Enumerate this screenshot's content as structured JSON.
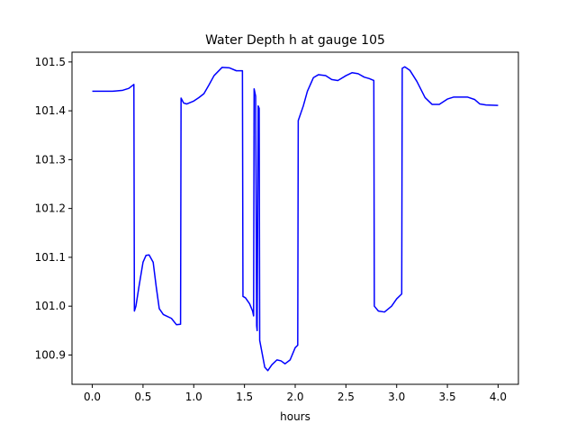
{
  "chart_data": {
    "type": "line",
    "title": "Water Depth h at gauge 105",
    "xlabel": "hours",
    "ylabel": "",
    "xlim": [
      -0.2,
      4.2
    ],
    "ylim": [
      100.84,
      101.52
    ],
    "grid": false,
    "xticks": [
      0.0,
      0.5,
      1.0,
      1.5,
      2.0,
      2.5,
      3.0,
      3.5,
      4.0
    ],
    "xtick_labels": [
      "0.0",
      "0.5",
      "1.0",
      "1.5",
      "2.0",
      "2.5",
      "3.0",
      "3.5",
      "4.0"
    ],
    "yticks": [
      100.9,
      101.0,
      101.1,
      101.2,
      101.3,
      101.4,
      101.5
    ],
    "ytick_labels": [
      "100.9",
      "101.0",
      "101.1",
      "101.2",
      "101.3",
      "101.4",
      "101.5"
    ],
    "series": [
      {
        "color": "#0000ff",
        "x": [
          0.0,
          0.2,
          0.3,
          0.36,
          0.41,
          0.415,
          0.43,
          0.46,
          0.5,
          0.53,
          0.56,
          0.6,
          0.63,
          0.66,
          0.7,
          0.73,
          0.78,
          0.83,
          0.87,
          0.875,
          0.9,
          0.93,
          1.0,
          1.05,
          1.1,
          1.15,
          1.2,
          1.28,
          1.35,
          1.42,
          1.48,
          1.485,
          1.51,
          1.55,
          1.58,
          1.59,
          1.595,
          1.61,
          1.62,
          1.625,
          1.635,
          1.645,
          1.65,
          1.7,
          1.73,
          1.77,
          1.82,
          1.86,
          1.9,
          1.95,
          2.0,
          2.025,
          2.03,
          2.08,
          2.12,
          2.18,
          2.23,
          2.3,
          2.36,
          2.42,
          2.5,
          2.56,
          2.62,
          2.68,
          2.73,
          2.775,
          2.78,
          2.82,
          2.88,
          2.95,
          3.0,
          3.05,
          3.055,
          3.08,
          3.13,
          3.2,
          3.28,
          3.35,
          3.42,
          3.5,
          3.56,
          3.63,
          3.7,
          3.77,
          3.82,
          3.88,
          4.0
        ],
        "y": [
          101.44,
          101.44,
          101.442,
          101.446,
          101.454,
          100.99,
          101.0,
          101.04,
          101.09,
          101.104,
          101.105,
          101.09,
          101.04,
          100.995,
          100.983,
          100.98,
          100.975,
          100.962,
          100.963,
          101.426,
          101.416,
          101.414,
          101.42,
          101.427,
          101.435,
          101.453,
          101.472,
          101.489,
          101.488,
          101.482,
          101.482,
          101.02,
          101.017,
          101.005,
          100.99,
          100.98,
          101.445,
          101.43,
          100.96,
          100.95,
          101.41,
          101.405,
          100.93,
          100.875,
          100.868,
          100.88,
          100.89,
          100.888,
          100.882,
          100.89,
          100.915,
          100.92,
          101.38,
          101.41,
          101.44,
          101.468,
          101.474,
          101.472,
          101.464,
          101.462,
          101.472,
          101.478,
          101.476,
          101.469,
          101.466,
          101.462,
          101.0,
          100.99,
          100.988,
          101.0,
          101.015,
          101.025,
          101.487,
          101.49,
          101.483,
          101.46,
          101.427,
          101.413,
          101.413,
          101.424,
          101.428,
          101.428,
          101.428,
          101.423,
          101.414,
          101.412,
          101.411
        ]
      }
    ]
  }
}
